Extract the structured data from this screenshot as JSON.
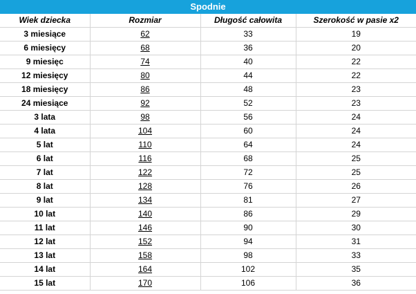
{
  "title": "Spodnie",
  "columns": [
    "Wiek dziecka",
    "Rozmiar",
    "Długość całowita",
    "Szerokość w pasie x2"
  ],
  "rows": [
    [
      "3 miesiące",
      "62",
      "33",
      "19"
    ],
    [
      "6 miesięcy",
      "68",
      "36",
      "20"
    ],
    [
      "9 miesięc",
      "74",
      "40",
      "22"
    ],
    [
      "12 miesięcy",
      "80",
      "44",
      "22"
    ],
    [
      "18 miesięcy",
      "86",
      "48",
      "23"
    ],
    [
      "24 miesiące",
      "92",
      "52",
      "23"
    ],
    [
      "3 lata",
      "98",
      "56",
      "24"
    ],
    [
      "4 lata",
      "104",
      "60",
      "24"
    ],
    [
      "5 lat",
      "110",
      "64",
      "24"
    ],
    [
      "6 lat",
      "116",
      "68",
      "25"
    ],
    [
      "7 lat",
      "122",
      "72",
      "25"
    ],
    [
      "8 lat",
      "128",
      "76",
      "26"
    ],
    [
      "9 lat",
      "134",
      "81",
      "27"
    ],
    [
      "10 lat",
      "140",
      "86",
      "29"
    ],
    [
      "11 lat",
      "146",
      "90",
      "30"
    ],
    [
      "12 lat",
      "152",
      "94",
      "31"
    ],
    [
      "13 lat",
      "158",
      "98",
      "33"
    ],
    [
      "14 lat",
      "164",
      "102",
      "35"
    ],
    [
      "15 lat",
      "170",
      "106",
      "36"
    ]
  ],
  "colors": {
    "title_bar": "#17a2dc",
    "grid": "#d4d4d4"
  }
}
